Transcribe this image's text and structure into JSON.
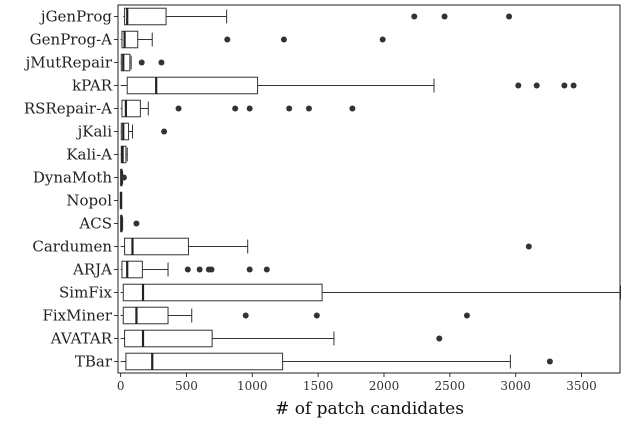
{
  "chart_data": {
    "type": "boxplot",
    "orientation": "horizontal",
    "xlabel": "# of patch candidates",
    "xlim": [
      -20,
      3800
    ],
    "xticks": [
      0,
      500,
      1000,
      1500,
      2000,
      2500,
      3000,
      3500
    ],
    "grid": false,
    "series": [
      {
        "name": "jGenProg",
        "min": 20,
        "q1": 30,
        "median": 50,
        "q3": 345,
        "max": 805,
        "outliers": [
          2230,
          2460,
          2950
        ]
      },
      {
        "name": "GenProg-A",
        "min": 0,
        "q1": 10,
        "median": 30,
        "q3": 130,
        "max": 240,
        "outliers": [
          810,
          1240,
          1990
        ]
      },
      {
        "name": "jMutRepair",
        "min": 0,
        "q1": 5,
        "median": 20,
        "q3": 70,
        "max": 80,
        "outliers": [
          160,
          310
        ]
      },
      {
        "name": "kPAR",
        "min": 0,
        "q1": 50,
        "median": 270,
        "q3": 1040,
        "max": 2380,
        "outliers": [
          3020,
          3160,
          3370,
          3440
        ]
      },
      {
        "name": "RSRepair-A",
        "min": 0,
        "q1": 10,
        "median": 40,
        "q3": 150,
        "max": 210,
        "outliers": [
          440,
          870,
          980,
          1280,
          1430,
          1760
        ]
      },
      {
        "name": "jKali",
        "min": 0,
        "q1": 5,
        "median": 20,
        "q3": 60,
        "max": 90,
        "outliers": [
          330
        ]
      },
      {
        "name": "Kali-A",
        "min": 0,
        "q1": 5,
        "median": 15,
        "q3": 40,
        "max": 50,
        "outliers": []
      },
      {
        "name": "DynaMoth",
        "min": 0,
        "q1": 2,
        "median": 5,
        "q3": 10,
        "max": 15,
        "outliers": [
          25
        ]
      },
      {
        "name": "Nopol",
        "min": 0,
        "q1": 1,
        "median": 2,
        "q3": 4,
        "max": 6,
        "outliers": []
      },
      {
        "name": "ACS",
        "min": 0,
        "q1": 2,
        "median": 5,
        "q3": 10,
        "max": 15,
        "outliers": [
          120
        ]
      },
      {
        "name": "Cardumen",
        "min": 0,
        "q1": 30,
        "median": 90,
        "q3": 515,
        "max": 965,
        "outliers": [
          3100
        ]
      },
      {
        "name": "ARJA",
        "min": 0,
        "q1": 10,
        "median": 50,
        "q3": 165,
        "max": 360,
        "outliers": [
          510,
          600,
          670,
          690,
          980,
          1110
        ]
      },
      {
        "name": "SimFix",
        "min": 0,
        "q1": 20,
        "median": 170,
        "q3": 1530,
        "max": 3800,
        "outliers": []
      },
      {
        "name": "FixMiner",
        "min": 0,
        "q1": 20,
        "median": 120,
        "q3": 360,
        "max": 540,
        "outliers": [
          950,
          1490,
          2630
        ]
      },
      {
        "name": "AVATAR",
        "min": 0,
        "q1": 30,
        "median": 170,
        "q3": 695,
        "max": 1620,
        "outliers": [
          2420
        ]
      },
      {
        "name": "TBar",
        "min": 0,
        "q1": 40,
        "median": 240,
        "q3": 1230,
        "max": 2960,
        "outliers": [
          3260
        ]
      }
    ]
  }
}
